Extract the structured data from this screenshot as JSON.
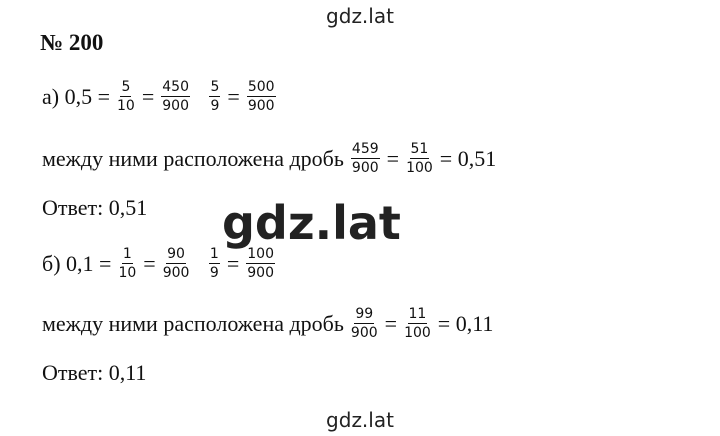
{
  "watermark_top": "gdz.lat",
  "heading": "№ 200",
  "lines": [
    {
      "parts": [
        {
          "text": "а) 0,5 ="
        },
        {
          "num": "5",
          "den": "10"
        },
        {
          "text": "="
        },
        {
          "num": "450",
          "den": "900"
        },
        {
          "text": " "
        },
        {
          "num": "5",
          "den": "9"
        },
        {
          "text": "="
        },
        {
          "num": "500",
          "den": "900"
        }
      ]
    },
    {
      "parts": [
        {
          "text": "между ними расположена дробь"
        },
        {
          "num": "459",
          "den": "900"
        },
        {
          "text": "="
        },
        {
          "num": "51",
          "den": "100"
        },
        {
          "text": "= 0,51"
        }
      ]
    },
    {
      "parts": [
        {
          "text": "Ответ: 0,51"
        }
      ]
    },
    {
      "parts": [
        {
          "text": "б) 0,1 ="
        },
        {
          "num": "1",
          "den": "10"
        },
        {
          "text": "="
        },
        {
          "num": "90",
          "den": "900"
        },
        {
          "text": " "
        },
        {
          "num": "1",
          "den": "9"
        },
        {
          "text": "="
        },
        {
          "num": "100",
          "den": "900"
        }
      ]
    },
    {
      "parts": [
        {
          "text": "между ними расположена дробь"
        },
        {
          "num": "99",
          "den": "900"
        },
        {
          "text": "="
        },
        {
          "num": "11",
          "den": "100"
        },
        {
          "text": "= 0,11"
        }
      ]
    },
    {
      "parts": [
        {
          "text": "Ответ: 0,11"
        }
      ]
    }
  ],
  "watermark_center": "gdz.lat",
  "watermark_bottom": "gdz.lat"
}
